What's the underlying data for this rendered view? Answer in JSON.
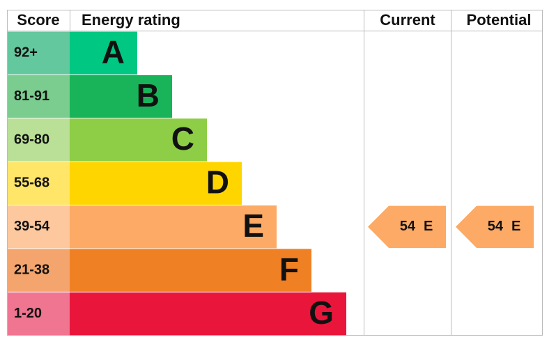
{
  "headers": [
    "Score",
    "Energy rating",
    "Current",
    "Potential"
  ],
  "bands": [
    {
      "score": "92+",
      "letter": "A",
      "color": "#00c781",
      "score_color": "#64c89e"
    },
    {
      "score": "81-91",
      "letter": "B",
      "color": "#19b459",
      "score_color": "#7acd8f"
    },
    {
      "score": "69-80",
      "letter": "C",
      "color": "#8dce46",
      "score_color": "#b9e096"
    },
    {
      "score": "55-68",
      "letter": "D",
      "color": "#ffd500",
      "score_color": "#ffe568"
    },
    {
      "score": "39-54",
      "letter": "E",
      "color": "#fcaa65",
      "score_color": "#fdc89e"
    },
    {
      "score": "21-38",
      "letter": "F",
      "color": "#ef8023",
      "score_color": "#f4a56d"
    },
    {
      "score": "1-20",
      "letter": "G",
      "color": "#e9153b",
      "score_color": "#f07590"
    }
  ],
  "current": {
    "value": 54,
    "letter": "E",
    "color": "#fcaa65"
  },
  "potential": {
    "value": 54,
    "letter": "E",
    "color": "#fcaa65"
  }
}
